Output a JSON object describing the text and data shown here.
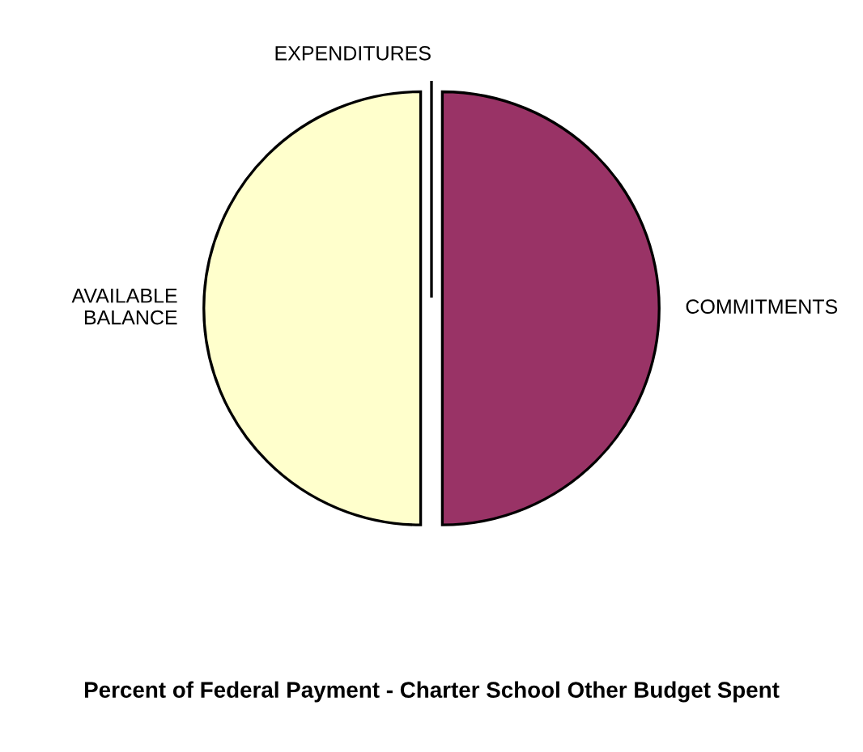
{
  "chart_data": {
    "type": "pie",
    "title": "Percent of Federal Payment - Charter School Other Budget Spent",
    "categories": [
      "EXPENDITURES",
      "COMMITMENTS",
      "AVAILABLE\nBALANCE"
    ],
    "values": [
      0,
      50,
      50
    ],
    "colors": [
      "#ffffff",
      "#993366",
      "#ffffcc"
    ],
    "legend": false
  }
}
